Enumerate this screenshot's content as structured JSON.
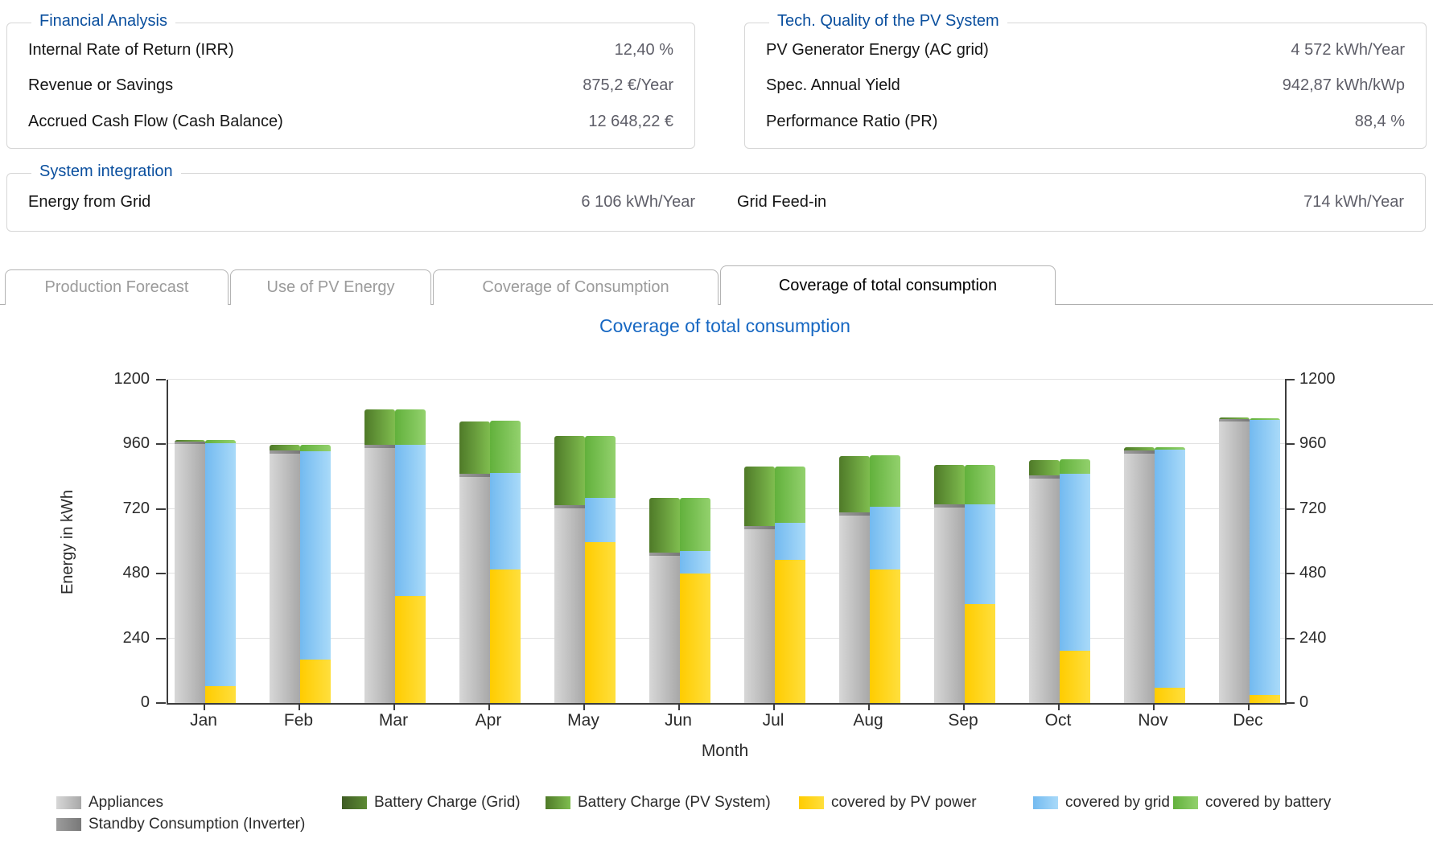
{
  "panels": {
    "financial": {
      "title": "Financial Analysis",
      "rows": [
        {
          "label": "Internal Rate of Return (IRR)",
          "value": "12,40 %"
        },
        {
          "label": "Revenue or Savings",
          "value": "875,2 €/Year"
        },
        {
          "label": "Accrued Cash Flow (Cash Balance)",
          "value": "12 648,22 €"
        }
      ]
    },
    "tech_quality": {
      "title": "Tech. Quality of the PV System",
      "rows": [
        {
          "label": "PV Generator Energy (AC grid)",
          "value": "4 572 kWh/Year"
        },
        {
          "label": "Spec. Annual Yield",
          "value": "942,87 kWh/kWp"
        },
        {
          "label": "Performance Ratio (PR)",
          "value": "88,4 %"
        }
      ]
    },
    "system_integration": {
      "title": "System integration",
      "rows": [
        {
          "label": "Energy from Grid",
          "value": "6 106 kWh/Year"
        },
        {
          "label": "Grid Feed-in",
          "value": "714 kWh/Year"
        }
      ]
    }
  },
  "tabs": [
    {
      "label": "Production Forecast",
      "active": false
    },
    {
      "label": "Use of PV Energy",
      "active": false
    },
    {
      "label": "Coverage of Consumption",
      "active": false
    },
    {
      "label": "Coverage of total consumption",
      "active": true
    }
  ],
  "chart_data": {
    "type": "bar",
    "title": "Coverage of total consumption",
    "xlabel": "Month",
    "ylabel": "Energy in kWh",
    "ylim": [
      0,
      1200
    ],
    "yticks": [
      0,
      240,
      480,
      720,
      960,
      1200
    ],
    "grid": true,
    "legend_position": "bottom",
    "categories": [
      "Jan",
      "Feb",
      "Mar",
      "Apr",
      "May",
      "Jun",
      "Jul",
      "Aug",
      "Sep",
      "Oct",
      "Nov",
      "Dec"
    ],
    "bar_layout": "two stacked bars per month: left = consumption composition, right = coverage composition",
    "series": [
      {
        "name": "Appliances",
        "bar": "left",
        "legend_color": "#c2c2c2",
        "gradient": [
          "#d7d7d7",
          "#a8a8a8"
        ],
        "values": [
          960,
          924,
          945,
          840,
          722,
          547,
          644,
          697,
          724,
          834,
          924,
          1044
        ]
      },
      {
        "name": "Standby Consumption (Inverter)",
        "bar": "left",
        "legend_color": "#8a8a8a",
        "gradient": [
          "#9c9c9c",
          "#787878"
        ],
        "values": [
          9,
          13,
          12,
          12,
          12,
          13,
          13,
          13,
          13,
          13,
          13,
          10
        ]
      },
      {
        "name": "Battery Charge (Grid)",
        "bar": "left",
        "legend_color": "#4b6a2d",
        "gradient": [
          "#3f5c24",
          "#5c8a33"
        ],
        "values": [
          0,
          0,
          0,
          0,
          0,
          0,
          0,
          0,
          0,
          0,
          0,
          0
        ]
      },
      {
        "name": "Battery Charge (PV System)",
        "bar": "left",
        "legend_color": "#69a039",
        "gradient": [
          "#4f7a28",
          "#7fbd4f"
        ],
        "values": [
          5,
          20,
          130,
          195,
          258,
          204,
          220,
          210,
          147,
          57,
          13,
          5
        ]
      },
      {
        "name": "covered by PV power",
        "bar": "right",
        "legend_color": "#ffd20a",
        "gradient": [
          "#ffcc00",
          "#ffdf3d"
        ],
        "values": [
          62,
          162,
          397,
          497,
          597,
          482,
          530,
          497,
          367,
          194,
          57,
          30
        ]
      },
      {
        "name": "covered by grid",
        "bar": "right",
        "legend_color": "#8fc9f3",
        "gradient": [
          "#73baf0",
          "#a9daf9"
        ],
        "values": [
          900,
          772,
          560,
          357,
          165,
          85,
          137,
          233,
          370,
          656,
          883,
          1022
        ]
      },
      {
        "name": "covered by battery",
        "bar": "right",
        "legend_color": "#7cc355",
        "gradient": [
          "#62b13c",
          "#93d16d"
        ],
        "values": [
          12,
          23,
          130,
          193,
          230,
          197,
          210,
          190,
          147,
          54,
          10,
          7
        ]
      }
    ]
  }
}
